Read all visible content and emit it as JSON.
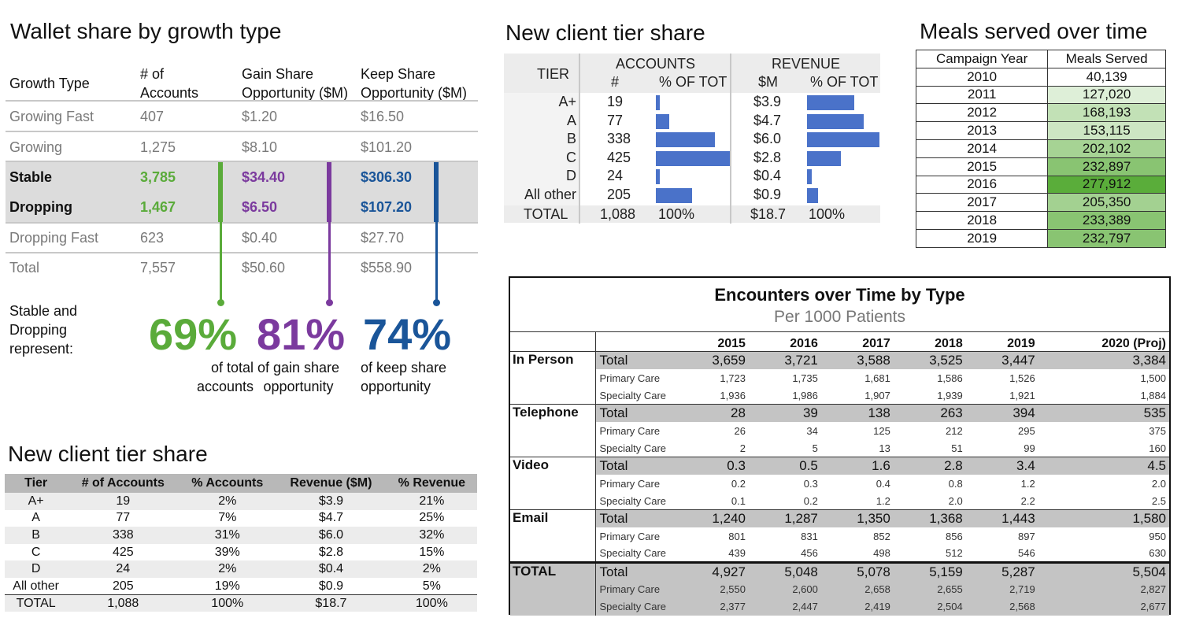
{
  "wallet": {
    "title": "Wallet share by growth type",
    "headers": {
      "type": "Growth Type",
      "accounts_1": "# of",
      "accounts_2": "Accounts",
      "gain_1": "Gain Share",
      "gain_2": "Opportunity ($M)",
      "keep_1": "Keep Share",
      "keep_2": "Opportunity ($M)"
    },
    "rows": [
      {
        "type": "Growing Fast",
        "accounts": "407",
        "gain": "$1.20",
        "keep": "$16.50"
      },
      {
        "type": "Growing",
        "accounts": "1,275",
        "gain": "$8.10",
        "keep": "$101.20"
      },
      {
        "type": "Stable",
        "accounts": "3,785",
        "gain": "$34.40",
        "keep": "$306.30"
      },
      {
        "type": "Dropping",
        "accounts": "1,467",
        "gain": "$6.50",
        "keep": "$107.20"
      },
      {
        "type": "Dropping Fast",
        "accounts": "623",
        "gain": "$0.40",
        "keep": "$27.70"
      },
      {
        "type": "Total",
        "accounts": "7,557",
        "gain": "$50.60",
        "keep": "$558.90"
      }
    ],
    "summary_label_1": "Stable and",
    "summary_label_2": "Dropping",
    "summary_label_3": "represent:",
    "pct_accounts": "69%",
    "pct_accounts_cap_1": "of total",
    "pct_accounts_cap_2": "accounts",
    "pct_gain": "81%",
    "pct_gain_cap_1": "of gain share",
    "pct_gain_cap_2": "opportunity",
    "pct_keep": "74%",
    "pct_keep_cap_1": "of keep share",
    "pct_keep_cap_2": "opportunity",
    "colors": {
      "green": "#5aab3a",
      "purple": "#7b3a9e",
      "blue": "#1a5599",
      "gray_text": "#7a7a7a"
    }
  },
  "tier_graph": {
    "title": "New client tier share",
    "tier_header": "TIER",
    "accounts_header": "ACCOUNTS",
    "revenue_header": "REVENUE",
    "count_header": "#",
    "pct_header": "% OF TOT",
    "dollar_header": "$M",
    "rev_pct_header": "% OF TOT",
    "rows": [
      {
        "tier": "A+",
        "count": "19",
        "acc_pct": 2,
        "rev": "$3.9",
        "rev_pct": 21
      },
      {
        "tier": "A",
        "count": "77",
        "acc_pct": 7,
        "rev": "$4.7",
        "rev_pct": 25
      },
      {
        "tier": "B",
        "count": "338",
        "acc_pct": 31,
        "rev": "$6.0",
        "rev_pct": 32
      },
      {
        "tier": "C",
        "count": "425",
        "acc_pct": 39,
        "rev": "$2.8",
        "rev_pct": 15
      },
      {
        "tier": "D",
        "count": "24",
        "acc_pct": 2,
        "rev": "$0.4",
        "rev_pct": 2
      },
      {
        "tier": "All other",
        "count": "205",
        "acc_pct": 19,
        "rev": "$0.9",
        "rev_pct": 5
      }
    ],
    "total": {
      "tier": "TOTAL",
      "count": "1,088",
      "acc_pct": "100%",
      "rev": "$18.7",
      "rev_pct": "100%"
    },
    "bar_color": "#4a72c9"
  },
  "meals": {
    "title": "Meals served over time",
    "col_year": "Campaign Year",
    "col_meals": "Meals Served",
    "rows": [
      {
        "year": "2010",
        "meals": "40,139",
        "value": 40139
      },
      {
        "year": "2011",
        "meals": "127,020",
        "value": 127020
      },
      {
        "year": "2012",
        "meals": "168,193",
        "value": 168193
      },
      {
        "year": "2013",
        "meals": "153,115",
        "value": 153115
      },
      {
        "year": "2014",
        "meals": "202,102",
        "value": 202102
      },
      {
        "year": "2015",
        "meals": "232,897",
        "value": 232897
      },
      {
        "year": "2016",
        "meals": "277,912",
        "value": 277912
      },
      {
        "year": "2017",
        "meals": "205,350",
        "value": 205350
      },
      {
        "year": "2018",
        "meals": "233,389",
        "value": 233389
      },
      {
        "year": "2019",
        "meals": "232,797",
        "value": 232797
      }
    ]
  },
  "tier_table": {
    "title": "New client tier share",
    "headers": [
      "Tier",
      "# of Accounts",
      "% Accounts",
      "Revenue ($M)",
      "% Revenue"
    ],
    "rows": [
      [
        "A+",
        "19",
        "2%",
        "$3.9",
        "21%"
      ],
      [
        "A",
        "77",
        "7%",
        "$4.7",
        "25%"
      ],
      [
        "B",
        "338",
        "31%",
        "$6.0",
        "32%"
      ],
      [
        "C",
        "425",
        "39%",
        "$2.8",
        "15%"
      ],
      [
        "D",
        "24",
        "2%",
        "$0.4",
        "2%"
      ],
      [
        "All other",
        "205",
        "19%",
        "$0.9",
        "5%"
      ],
      [
        "TOTAL",
        "1,088",
        "100%",
        "$18.7",
        "100%"
      ]
    ]
  },
  "encounters": {
    "title": "Encounters over Time by Type",
    "subtitle": "Per 1000 Patients",
    "years": [
      "2015",
      "2016",
      "2017",
      "2018",
      "2019",
      "2020 (Proj)"
    ],
    "groups": [
      {
        "name": "In Person",
        "rows": [
          {
            "label": "Total",
            "values": [
              "3,659",
              "3,721",
              "3,588",
              "3,525",
              "3,447",
              "3,384"
            ]
          },
          {
            "label": "Primary Care",
            "values": [
              "1,723",
              "1,735",
              "1,681",
              "1,586",
              "1,526",
              "1,500"
            ]
          },
          {
            "label": "Specialty Care",
            "values": [
              "1,936",
              "1,986",
              "1,907",
              "1,939",
              "1,921",
              "1,884"
            ]
          }
        ]
      },
      {
        "name": "Telephone",
        "rows": [
          {
            "label": "Total",
            "values": [
              "28",
              "39",
              "138",
              "263",
              "394",
              "535"
            ]
          },
          {
            "label": "Primary Care",
            "values": [
              "26",
              "34",
              "125",
              "212",
              "295",
              "375"
            ]
          },
          {
            "label": "Specialty Care",
            "values": [
              "2",
              "5",
              "13",
              "51",
              "99",
              "160"
            ]
          }
        ]
      },
      {
        "name": "Video",
        "rows": [
          {
            "label": "Total",
            "values": [
              "0.3",
              "0.5",
              "1.6",
              "2.8",
              "3.4",
              "4.5"
            ]
          },
          {
            "label": "Primary Care",
            "values": [
              "0.2",
              "0.3",
              "0.4",
              "0.8",
              "1.2",
              "2.0"
            ]
          },
          {
            "label": "Specialty Care",
            "values": [
              "0.1",
              "0.2",
              "1.2",
              "2.0",
              "2.2",
              "2.5"
            ]
          }
        ]
      },
      {
        "name": "Email",
        "rows": [
          {
            "label": "Total",
            "values": [
              "1,240",
              "1,287",
              "1,350",
              "1,368",
              "1,443",
              "1,580"
            ]
          },
          {
            "label": "Primary Care",
            "values": [
              "801",
              "831",
              "852",
              "856",
              "897",
              "950"
            ]
          },
          {
            "label": "Specialty Care",
            "values": [
              "439",
              "456",
              "498",
              "512",
              "546",
              "630"
            ]
          }
        ]
      },
      {
        "name": "TOTAL",
        "rows": [
          {
            "label": "Total",
            "values": [
              "4,927",
              "5,048",
              "5,078",
              "5,159",
              "5,287",
              "5,504"
            ]
          },
          {
            "label": "Primary Care",
            "values": [
              "2,550",
              "2,600",
              "2,658",
              "2,655",
              "2,719",
              "2,827"
            ]
          },
          {
            "label": "Specialty Care",
            "values": [
              "2,377",
              "2,447",
              "2,419",
              "2,504",
              "2,568",
              "2,677"
            ]
          }
        ]
      }
    ]
  }
}
